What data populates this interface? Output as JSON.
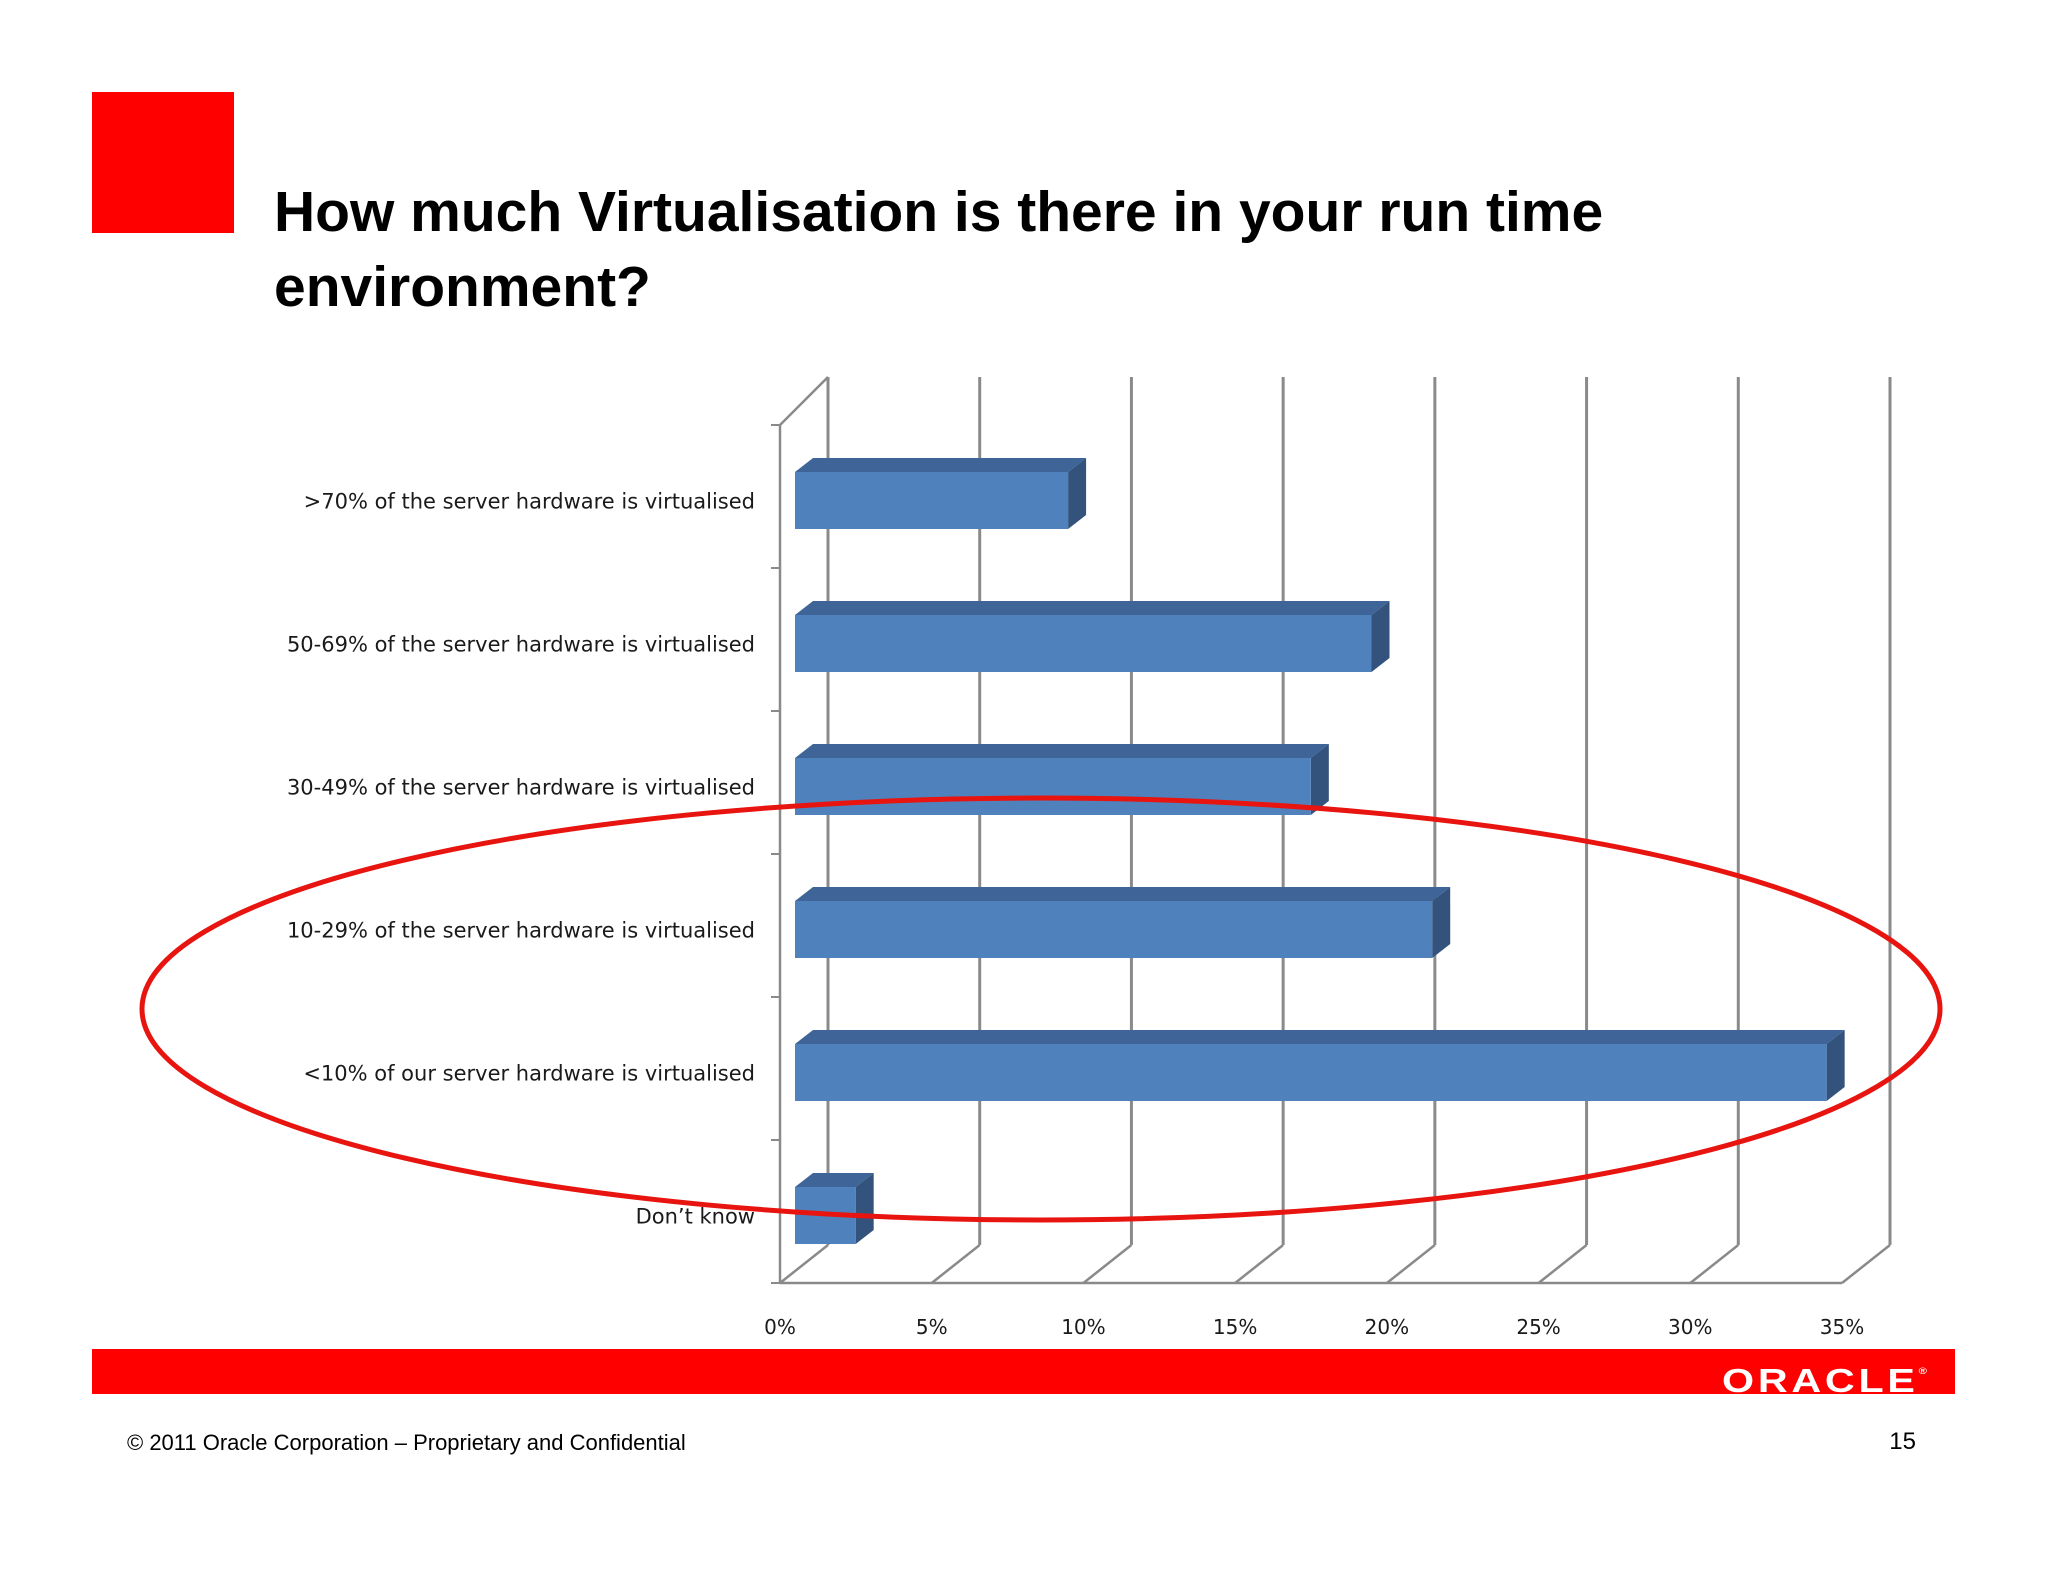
{
  "slide": {
    "title": "How much Virtualisation is there in your run time environment?",
    "copyright": "© 2011 Oracle Corporation – Proprietary and Confidential",
    "page_number": "15",
    "logo_text": "ORACLE",
    "logo_mark": "®"
  },
  "colors": {
    "accent_red": "#ff0000",
    "bar_front": "#4f81bd",
    "bar_top": "#3f6497",
    "bar_side": "#34537c",
    "grid": "#8a8a8a",
    "highlight_ellipse": "#e8140f"
  },
  "chart_data": {
    "type": "bar",
    "orientation": "horizontal",
    "style": "3d",
    "categories": [
      ">70% of the server hardware is virtualised",
      "50-69% of the server hardware is virtualised",
      "30-49% of the server hardware is virtualised",
      "10-29% of the server hardware is virtualised",
      "<10% of our server hardware is virtualised",
      "Don’t know"
    ],
    "values": [
      9,
      19,
      17,
      21,
      34,
      2
    ],
    "unit": "%",
    "xlim": [
      0,
      35
    ],
    "xticks": [
      "0%",
      "5%",
      "10%",
      "15%",
      "20%",
      "25%",
      "30%",
      "35%"
    ],
    "grid": true,
    "legend": "none",
    "highlight": {
      "shape": "ellipse",
      "categories": [
        "10-29% of the server hardware is virtualised",
        "<10% of our server hardware is virtualised"
      ]
    }
  }
}
